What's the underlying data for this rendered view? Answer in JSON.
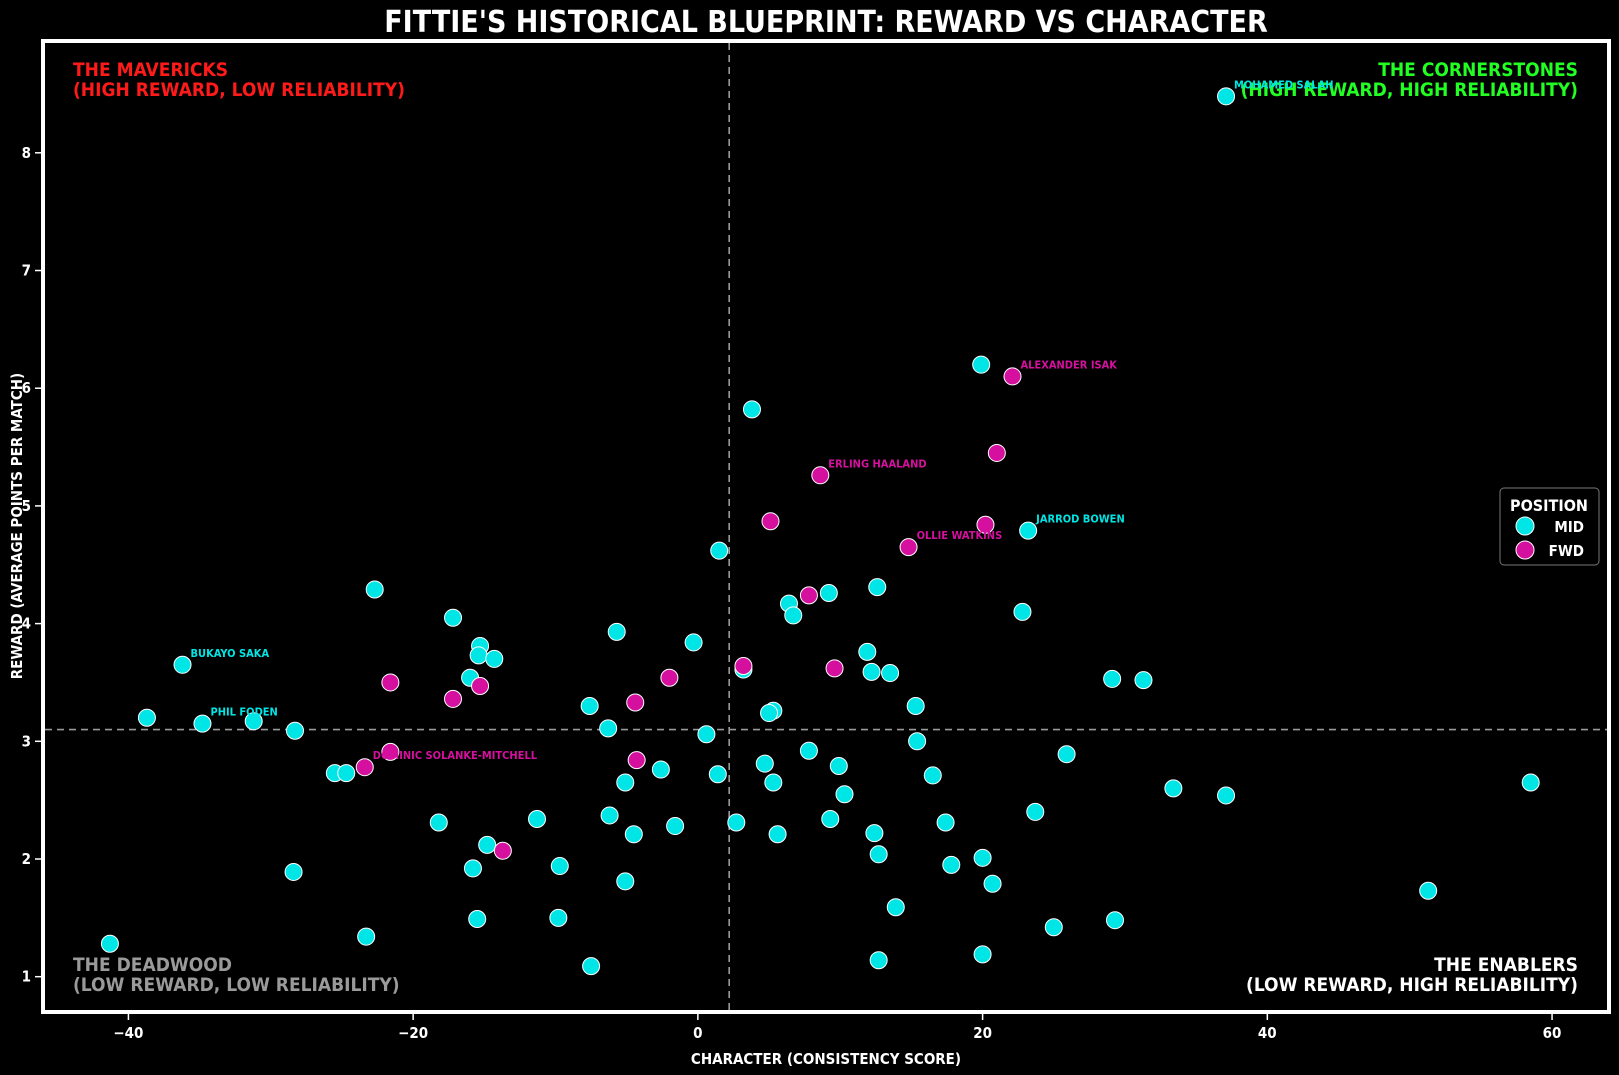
{
  "colors": {
    "background": "#000000",
    "frame": "#ffffff",
    "mid": "#00e5e5",
    "fwd": "#d6109e",
    "mavericks": "#ff1a1a",
    "cornerstones": "#22ff22",
    "deadwood": "#9a9a9a",
    "enablers": "#ffffff",
    "refline": "#9a9a9a"
  },
  "chart_data": {
    "type": "scatter",
    "title": "FITTIE'S HISTORICAL BLUEPRINT: REWARD VS CHARACTER",
    "xlabel": "CHARACTER (CONSISTENCY SCORE)",
    "ylabel": "REWARD (AVERAGE POINTS PER MATCH)",
    "xlim": [
      -46,
      64
    ],
    "ylim": [
      0.7,
      8.95
    ],
    "xticks": [
      -40,
      -20,
      0,
      20,
      40,
      60
    ],
    "xtick_labels": [
      "−40",
      "−20",
      "0",
      "20",
      "40",
      "60"
    ],
    "yticks": [
      1,
      2,
      3,
      4,
      5,
      6,
      7,
      8
    ],
    "ytick_labels": [
      "1",
      "2",
      "3",
      "4",
      "5",
      "6",
      "7",
      "8"
    ],
    "ref_lines": {
      "x": 2.2,
      "y": 3.1
    },
    "grid": false,
    "legend": {
      "title": "POSITION",
      "placement": "center-right"
    },
    "quadrant_labels": {
      "mavericks": [
        "THE MAVERICKS",
        "(HIGH REWARD, LOW RELIABILITY)"
      ],
      "cornerstones": [
        "THE CORNERSTONES",
        "(HIGH REWARD, HIGH RELIABILITY)"
      ],
      "deadwood": [
        "THE DEADWOOD",
        "(LOW REWARD, LOW RELIABILITY)"
      ],
      "enablers": [
        "THE ENABLERS",
        "(LOW REWARD, HIGH RELIABILITY)"
      ]
    },
    "series": [
      {
        "name": "MID",
        "color": "#00e5e5",
        "points": [
          [
            37.1,
            8.48
          ],
          [
            19.9,
            6.2
          ],
          [
            3.8,
            5.82
          ],
          [
            1.5,
            4.62
          ],
          [
            23.2,
            4.79
          ],
          [
            12.6,
            4.31
          ],
          [
            9.2,
            4.26
          ],
          [
            6.4,
            4.17
          ],
          [
            6.7,
            4.07
          ],
          [
            22.8,
            4.1
          ],
          [
            -22.7,
            4.29
          ],
          [
            -17.2,
            4.05
          ],
          [
            -15.3,
            3.81
          ],
          [
            -15.4,
            3.73
          ],
          [
            -14.3,
            3.7
          ],
          [
            -5.7,
            3.93
          ],
          [
            -0.3,
            3.84
          ],
          [
            3.2,
            3.61
          ],
          [
            11.9,
            3.76
          ],
          [
            12.2,
            3.59
          ],
          [
            13.5,
            3.58
          ],
          [
            29.1,
            3.53
          ],
          [
            31.3,
            3.52
          ],
          [
            15.3,
            3.3
          ],
          [
            -16.0,
            3.54
          ],
          [
            -36.2,
            3.65
          ],
          [
            -38.7,
            3.2
          ],
          [
            -34.8,
            3.15
          ],
          [
            -31.2,
            3.17
          ],
          [
            -28.3,
            3.09
          ],
          [
            -7.6,
            3.3
          ],
          [
            -6.3,
            3.11
          ],
          [
            0.6,
            3.06
          ],
          [
            5.3,
            3.26
          ],
          [
            5.0,
            3.24
          ],
          [
            15.4,
            3.0
          ],
          [
            7.8,
            2.92
          ],
          [
            25.9,
            2.89
          ],
          [
            4.7,
            2.81
          ],
          [
            9.9,
            2.79
          ],
          [
            -2.6,
            2.76
          ],
          [
            1.4,
            2.72
          ],
          [
            16.5,
            2.71
          ],
          [
            -25.5,
            2.73
          ],
          [
            -24.7,
            2.73
          ],
          [
            -5.1,
            2.65
          ],
          [
            5.3,
            2.65
          ],
          [
            10.3,
            2.55
          ],
          [
            33.4,
            2.6
          ],
          [
            37.1,
            2.54
          ],
          [
            58.5,
            2.65
          ],
          [
            23.7,
            2.4
          ],
          [
            -18.2,
            2.31
          ],
          [
            -11.3,
            2.34
          ],
          [
            -6.2,
            2.37
          ],
          [
            -1.6,
            2.28
          ],
          [
            2.7,
            2.31
          ],
          [
            9.3,
            2.34
          ],
          [
            17.4,
            2.31
          ],
          [
            -4.5,
            2.21
          ],
          [
            5.6,
            2.21
          ],
          [
            12.4,
            2.22
          ],
          [
            -14.8,
            2.12
          ],
          [
            -9.7,
            1.94
          ],
          [
            -15.8,
            1.92
          ],
          [
            -5.1,
            1.81
          ],
          [
            12.7,
            2.04
          ],
          [
            17.8,
            1.95
          ],
          [
            20.0,
            2.01
          ],
          [
            20.7,
            1.79
          ],
          [
            -28.4,
            1.89
          ],
          [
            51.3,
            1.73
          ],
          [
            13.9,
            1.59
          ],
          [
            -15.5,
            1.49
          ],
          [
            -9.8,
            1.5
          ],
          [
            29.3,
            1.48
          ],
          [
            25.0,
            1.42
          ],
          [
            -41.3,
            1.28
          ],
          [
            -23.3,
            1.34
          ],
          [
            -7.5,
            1.09
          ],
          [
            12.7,
            1.14
          ],
          [
            20.0,
            1.19
          ]
        ]
      },
      {
        "name": "FWD",
        "color": "#d6109e",
        "points": [
          [
            22.1,
            6.1
          ],
          [
            21.0,
            5.45
          ],
          [
            8.6,
            5.26
          ],
          [
            5.1,
            4.87
          ],
          [
            20.2,
            4.84
          ],
          [
            14.8,
            4.65
          ],
          [
            7.8,
            4.24
          ],
          [
            3.2,
            3.64
          ],
          [
            9.6,
            3.62
          ],
          [
            -2.0,
            3.54
          ],
          [
            -21.6,
            3.5
          ],
          [
            -15.3,
            3.47
          ],
          [
            -17.2,
            3.36
          ],
          [
            -4.4,
            3.33
          ],
          [
            -21.6,
            2.91
          ],
          [
            -4.3,
            2.84
          ],
          [
            -23.4,
            2.78
          ],
          [
            -13.7,
            2.07
          ]
        ]
      }
    ],
    "annotations": [
      {
        "text": "MOHAMED SALAH",
        "x": 37.1,
        "y": 8.48,
        "series": "MID"
      },
      {
        "text": "ALEXANDER ISAK",
        "x": 22.1,
        "y": 6.1,
        "series": "FWD"
      },
      {
        "text": "ERLING HAALAND",
        "x": 8.6,
        "y": 5.26,
        "series": "FWD"
      },
      {
        "text": "JARROD BOWEN",
        "x": 23.2,
        "y": 4.79,
        "series": "MID"
      },
      {
        "text": "OLLIE WATKINS",
        "x": 14.8,
        "y": 4.65,
        "series": "FWD"
      },
      {
        "text": "BUKAYO SAKA",
        "x": -36.2,
        "y": 3.65,
        "series": "MID"
      },
      {
        "text": "PHIL FODEN",
        "x": -34.8,
        "y": 3.15,
        "series": "MID"
      },
      {
        "text": "DOMINIC SOLANKE-MITCHELL",
        "x": -23.4,
        "y": 2.78,
        "series": "FWD"
      }
    ]
  }
}
